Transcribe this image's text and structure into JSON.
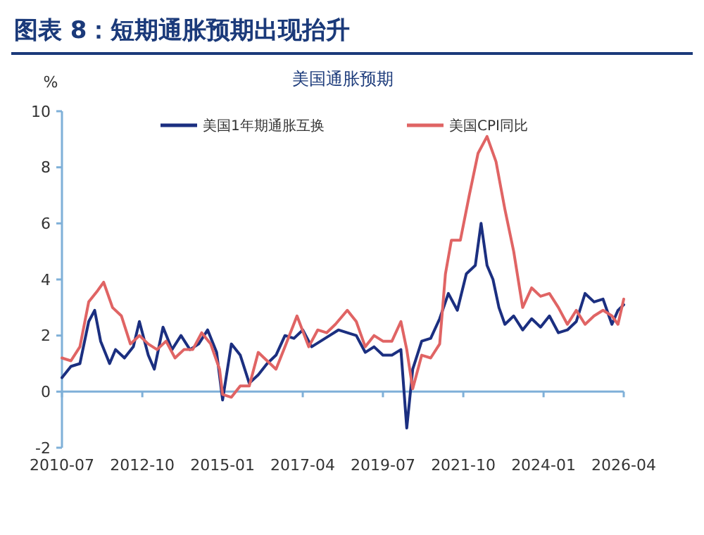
{
  "chart_data": {
    "type": "line",
    "title": "图表 8：短期通胀预期出现抬升",
    "subtitle": "美国通胀预期",
    "ylabel": "%",
    "xlim": [
      "2010-07",
      "2026-04"
    ],
    "xticks": [
      "2010-07",
      "2012-10",
      "2015-01",
      "2017-04",
      "2019-07",
      "2021-10",
      "2024-01",
      "2026-04"
    ],
    "ylim": [
      -2,
      10
    ],
    "yticks": [
      -2,
      0,
      2,
      4,
      6,
      8,
      10
    ],
    "grid": false,
    "ref_lines": [
      {
        "axis": "y",
        "value": 0,
        "color": "#7fb0d8"
      }
    ],
    "legend": "top",
    "marker": "none",
    "line_style": "solid",
    "series": [
      {
        "name": "美国1年期通胀互换",
        "color": "#1b2f80",
        "x": [
          "2010-07",
          "2010-10",
          "2011-01",
          "2011-04",
          "2011-06",
          "2011-08",
          "2011-11",
          "2012-01",
          "2012-04",
          "2012-07",
          "2012-09",
          "2012-12",
          "2013-02",
          "2013-05",
          "2013-08",
          "2013-11",
          "2014-02",
          "2014-05",
          "2014-08",
          "2014-11",
          "2015-01",
          "2015-04",
          "2015-07",
          "2015-10",
          "2016-01",
          "2016-04",
          "2016-07",
          "2016-10",
          "2017-01",
          "2017-04",
          "2017-07",
          "2017-10",
          "2018-01",
          "2018-04",
          "2018-07",
          "2018-10",
          "2019-01",
          "2019-04",
          "2019-07",
          "2019-10",
          "2020-01",
          "2020-03",
          "2020-05",
          "2020-08",
          "2020-11",
          "2021-02",
          "2021-05",
          "2021-08",
          "2021-11",
          "2022-02",
          "2022-04",
          "2022-06",
          "2022-08",
          "2022-10",
          "2022-12",
          "2023-03",
          "2023-06",
          "2023-09",
          "2023-12",
          "2024-03",
          "2024-06",
          "2024-09",
          "2024-12",
          "2025-03",
          "2025-06",
          "2025-09",
          "2025-12",
          "2026-02",
          "2026-04"
        ],
        "values": [
          0.5,
          0.9,
          1.0,
          2.5,
          2.9,
          1.8,
          1.0,
          1.5,
          1.2,
          1.6,
          2.5,
          1.3,
          0.8,
          2.3,
          1.5,
          2.0,
          1.5,
          1.7,
          2.2,
          1.4,
          -0.3,
          1.7,
          1.3,
          0.3,
          0.6,
          1.0,
          1.3,
          2.0,
          1.9,
          2.2,
          1.6,
          1.8,
          2.0,
          2.2,
          2.1,
          2.0,
          1.4,
          1.6,
          1.3,
          1.3,
          1.5,
          -1.3,
          0.8,
          1.8,
          1.9,
          2.6,
          3.5,
          2.9,
          4.2,
          4.5,
          6.0,
          4.5,
          4.0,
          3.0,
          2.4,
          2.7,
          2.2,
          2.6,
          2.3,
          2.7,
          2.1,
          2.2,
          2.5,
          3.5,
          3.2,
          3.3,
          2.4,
          2.9,
          3.1
        ]
      },
      {
        "name": "美国CPI同比",
        "color": "#e06464",
        "x": [
          "2010-07",
          "2010-10",
          "2011-01",
          "2011-04",
          "2011-07",
          "2011-09",
          "2011-12",
          "2012-03",
          "2012-06",
          "2012-09",
          "2012-12",
          "2013-03",
          "2013-06",
          "2013-09",
          "2013-12",
          "2014-03",
          "2014-06",
          "2014-09",
          "2014-12",
          "2015-01",
          "2015-04",
          "2015-07",
          "2015-10",
          "2016-01",
          "2016-04",
          "2016-07",
          "2016-10",
          "2017-02",
          "2017-06",
          "2017-09",
          "2017-12",
          "2018-03",
          "2018-07",
          "2018-10",
          "2019-01",
          "2019-04",
          "2019-07",
          "2019-10",
          "2020-01",
          "2020-03",
          "2020-05",
          "2020-08",
          "2020-11",
          "2021-02",
          "2021-04",
          "2021-06",
          "2021-09",
          "2021-12",
          "2022-03",
          "2022-06",
          "2022-09",
          "2022-12",
          "2023-03",
          "2023-06",
          "2023-09",
          "2023-12",
          "2024-03",
          "2024-06",
          "2024-09",
          "2024-12",
          "2025-03",
          "2025-06",
          "2025-09",
          "2025-12",
          "2026-02",
          "2026-04"
        ],
        "values": [
          1.2,
          1.1,
          1.6,
          3.2,
          3.6,
          3.9,
          3.0,
          2.7,
          1.7,
          2.0,
          1.7,
          1.5,
          1.8,
          1.2,
          1.5,
          1.5,
          2.1,
          1.7,
          0.8,
          -0.1,
          -0.2,
          0.2,
          0.2,
          1.4,
          1.1,
          0.8,
          1.6,
          2.7,
          1.6,
          2.2,
          2.1,
          2.4,
          2.9,
          2.5,
          1.6,
          2.0,
          1.8,
          1.8,
          2.5,
          1.5,
          0.1,
          1.3,
          1.2,
          1.7,
          4.2,
          5.4,
          5.4,
          7.0,
          8.5,
          9.1,
          8.2,
          6.5,
          5.0,
          3.0,
          3.7,
          3.4,
          3.5,
          3.0,
          2.4,
          2.9,
          2.4,
          2.7,
          2.9,
          2.7,
          2.4,
          3.3
        ]
      }
    ]
  }
}
